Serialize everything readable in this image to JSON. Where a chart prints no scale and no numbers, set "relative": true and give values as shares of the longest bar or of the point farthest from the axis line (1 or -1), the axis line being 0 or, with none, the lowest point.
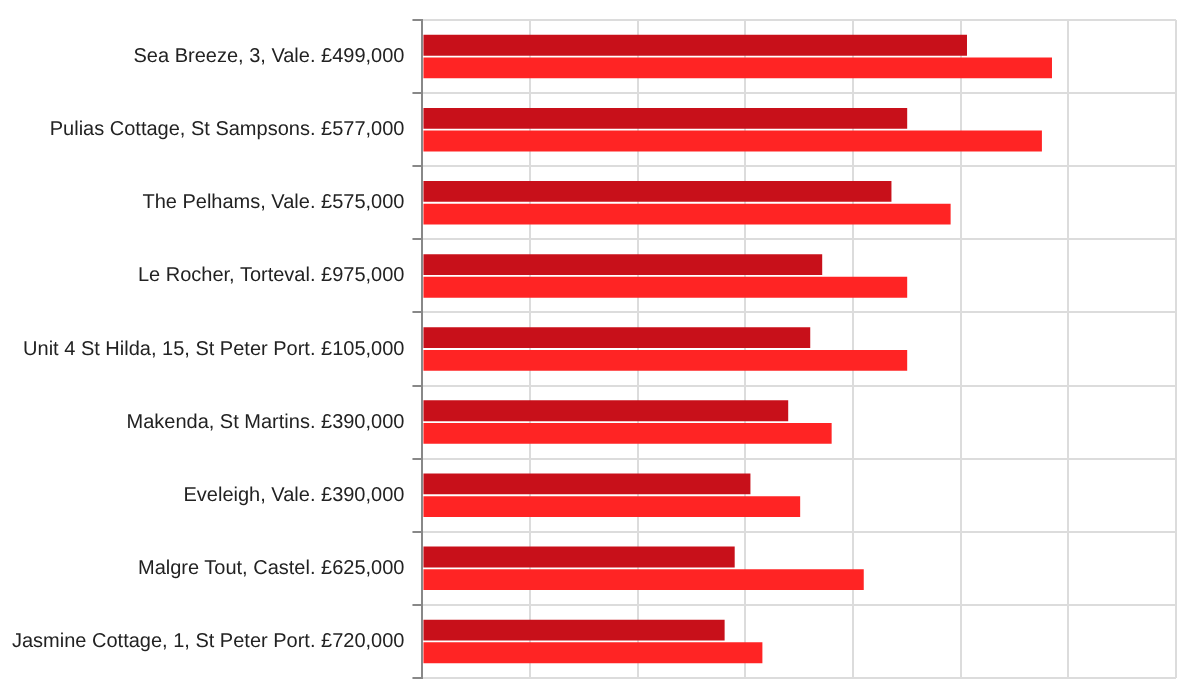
{
  "chart_data": {
    "type": "bar",
    "orientation": "horizontal",
    "relative": true,
    "grid": true,
    "categories": [
      "Sea Breeze, 3, Vale. £499,000",
      "Pulias Cottage, St Sampsons. £577,000",
      "The Pelhams, Vale. £575,000",
      "Le Rocher, Torteval. £975,000",
      "Unit 4 St Hilda, 15, St Peter Port. £105,000",
      "Makenda, St Martins. £390,000",
      "Eveleigh, Vale. £390,000",
      "Malgre Tout, Castel. £625,000",
      "Jasmine Cottage, 1, St Peter Port. £720,000"
    ],
    "series": [
      {
        "color": "#c8101a",
        "values": [
          0.865,
          0.77,
          0.745,
          0.635,
          0.616,
          0.581,
          0.521,
          0.496,
          0.48
        ]
      },
      {
        "color": "#ff2424",
        "values": [
          1,
          0.984,
          0.839,
          0.77,
          0.77,
          0.65,
          0.6,
          0.701,
          0.54
        ]
      }
    ]
  }
}
